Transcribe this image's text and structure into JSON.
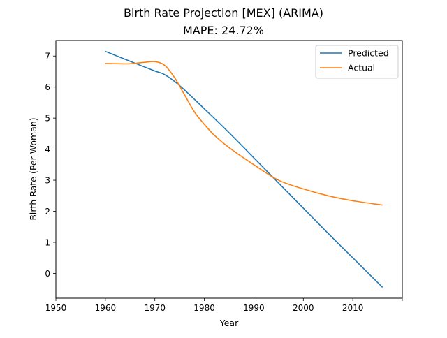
{
  "chart_data": {
    "type": "line",
    "title": "Birth Rate Projection [MEX] (ARIMA)",
    "subtitle": "MAPE: 24.72%",
    "xlabel": "Year",
    "ylabel": "Birth Rate (Per Woman)",
    "xlim": [
      1950,
      2020
    ],
    "ylim": [
      -0.8,
      7.5
    ],
    "xticks": [
      1950,
      1960,
      1970,
      1980,
      1990,
      2000,
      2010,
      2020
    ],
    "xtick_labels": [
      "1950",
      "1960",
      "1970",
      "1980",
      "1990",
      "2000",
      "2010",
      ""
    ],
    "yticks": [
      0,
      1,
      2,
      3,
      4,
      5,
      6,
      7
    ],
    "legend_position": "top-right",
    "grid": false,
    "series": [
      {
        "name": "Predicted",
        "color": "#1f77b4",
        "x": [
          1960,
          1965,
          1970,
          1972,
          1975,
          1980,
          1985,
          1990,
          1995,
          2000,
          2005,
          2010,
          2016
        ],
        "values": [
          7.15,
          6.83,
          6.52,
          6.4,
          6.05,
          5.3,
          4.53,
          3.72,
          2.91,
          2.1,
          1.29,
          0.5,
          -0.45
        ]
      },
      {
        "name": "Actual",
        "color": "#ff7f0e",
        "x": [
          1960,
          1963,
          1965,
          1968,
          1970,
          1972,
          1974,
          1976,
          1978,
          1980,
          1982,
          1985,
          1990,
          1995,
          2000,
          2005,
          2010,
          2016
        ],
        "values": [
          6.76,
          6.75,
          6.75,
          6.8,
          6.82,
          6.7,
          6.3,
          5.75,
          5.2,
          4.8,
          4.45,
          4.05,
          3.5,
          3.0,
          2.72,
          2.5,
          2.34,
          2.2
        ]
      }
    ]
  }
}
